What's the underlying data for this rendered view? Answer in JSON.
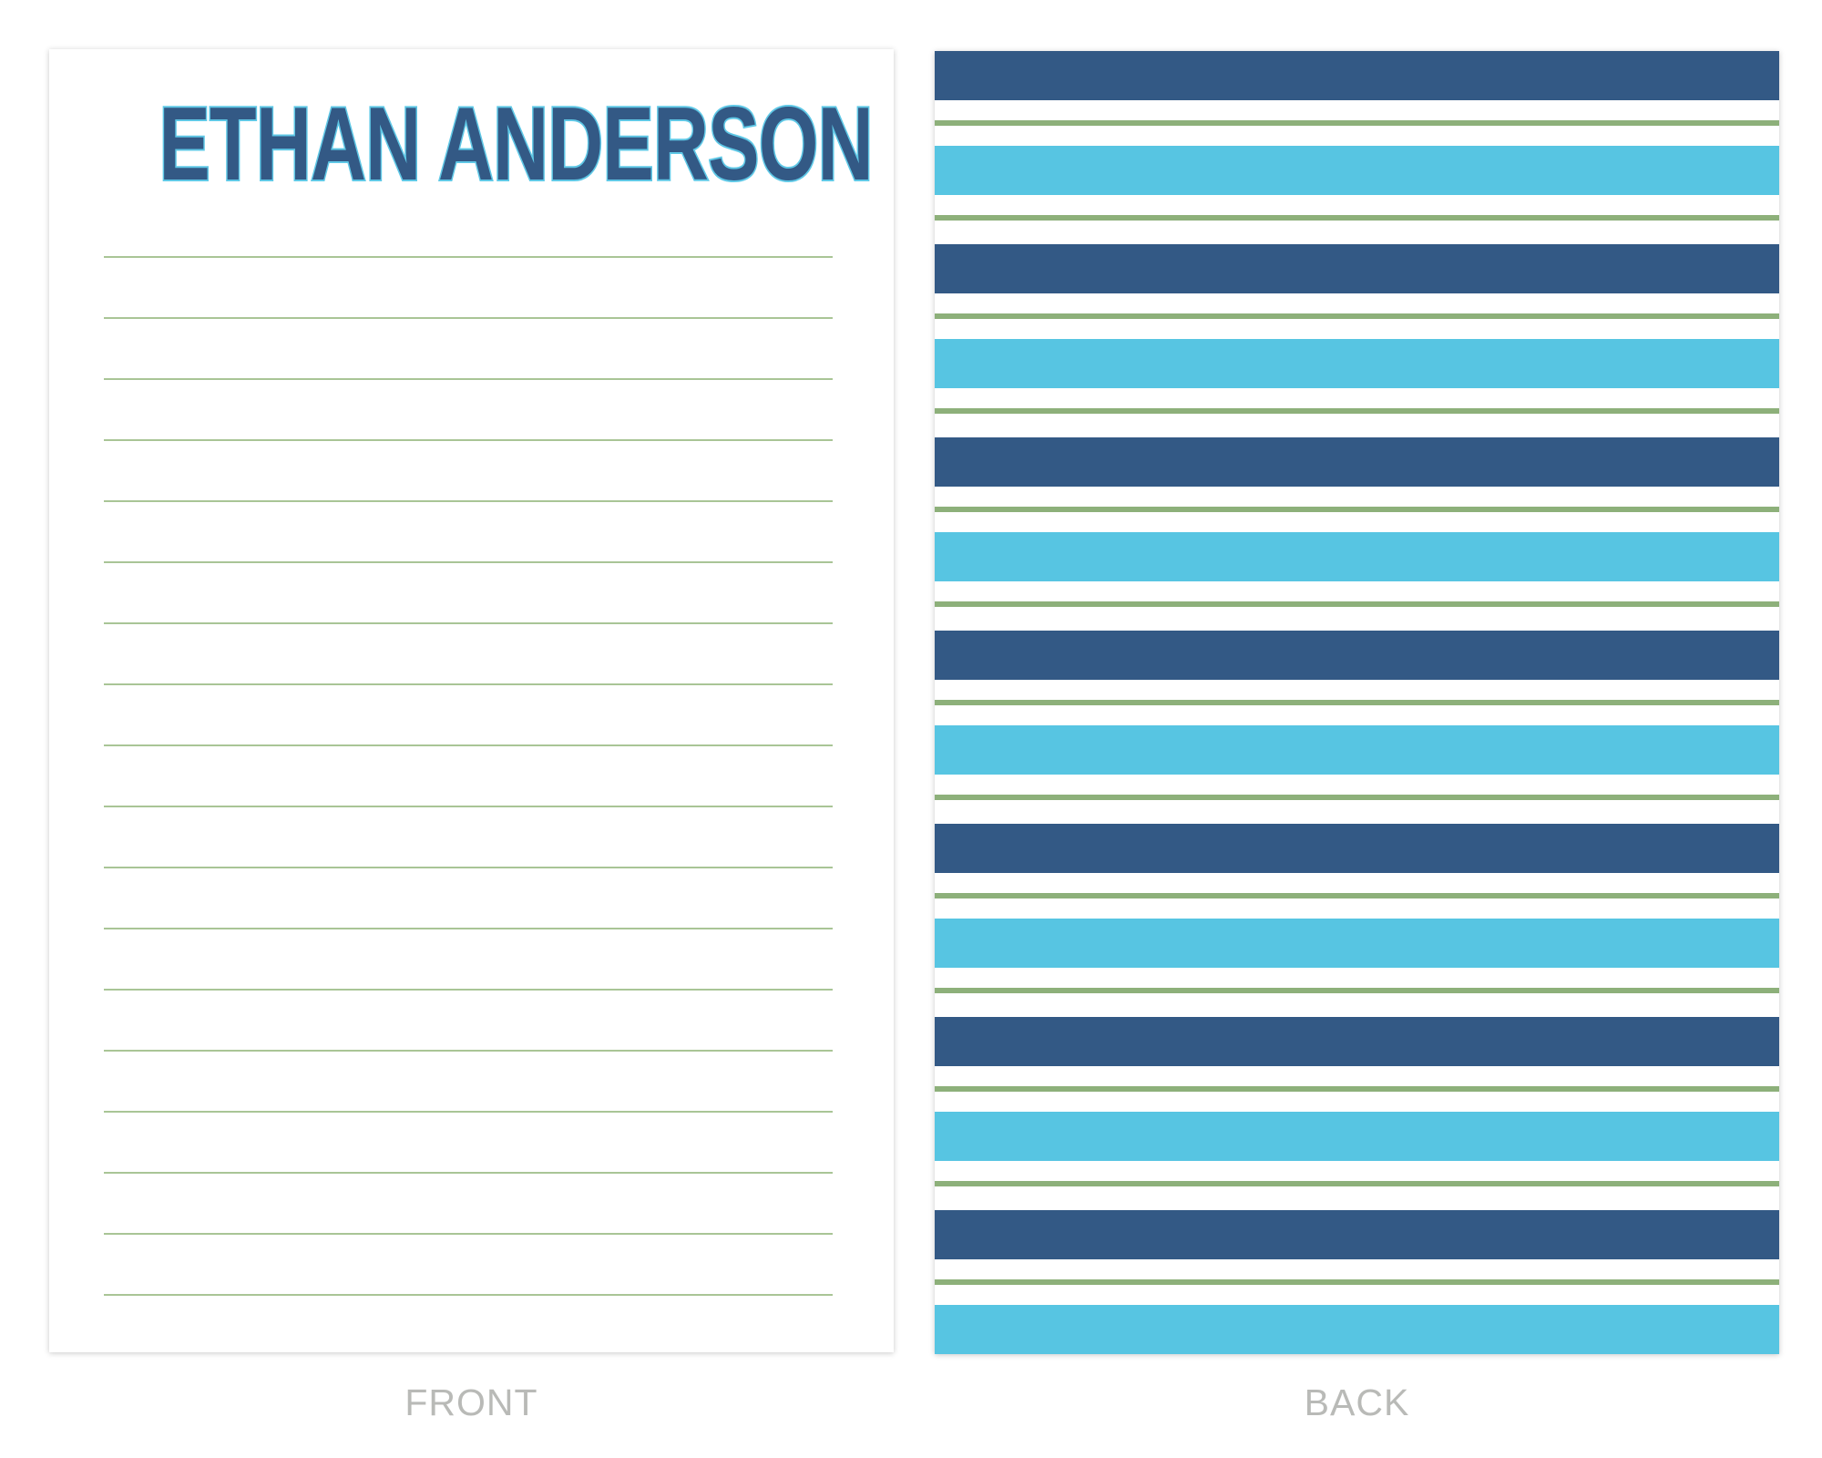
{
  "front": {
    "name": "ETHAN ANDERSON",
    "caption": "FRONT",
    "line_count": 18
  },
  "back": {
    "caption": "BACK"
  },
  "colors": {
    "navy": "#335985",
    "sky": "#57c5e2",
    "green": "#8db07a",
    "rule": "#a9c596",
    "caption": "#b9bab7"
  }
}
